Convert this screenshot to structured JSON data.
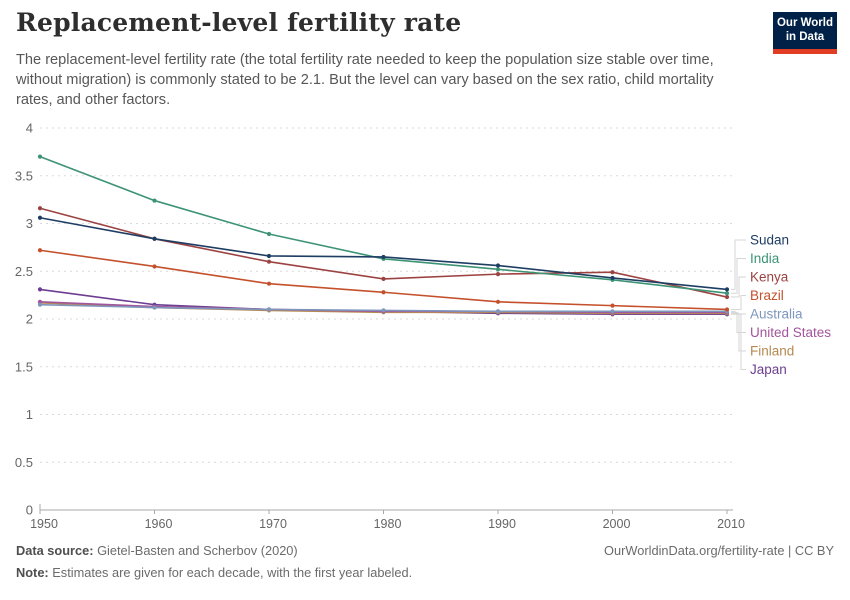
{
  "header": {
    "title": "Replacement-level fertility rate",
    "subtitle": "The replacement-level fertility rate (the total fertility rate needed to keep the population size stable over time, without migration) is commonly stated to be 2.1. But the level can vary based on the sex ratio, child mortality rates, and other factors.",
    "logo": {
      "line1": "Our World",
      "line2": "in Data",
      "bg_color": "#002147",
      "accent_color": "#E13D24"
    }
  },
  "chart_data": {
    "type": "line",
    "x": [
      1950,
      1960,
      1970,
      1980,
      1990,
      2000,
      2010
    ],
    "series": [
      {
        "name": "Sudan",
        "color": "#1D3D63",
        "values": [
          3.06,
          2.84,
          2.66,
          2.65,
          2.56,
          2.43,
          2.31
        ]
      },
      {
        "name": "India",
        "color": "#3D9475",
        "values": [
          3.7,
          3.24,
          2.89,
          2.63,
          2.52,
          2.41,
          2.27
        ]
      },
      {
        "name": "Kenya",
        "color": "#9C4342",
        "values": [
          3.16,
          2.84,
          2.6,
          2.42,
          2.47,
          2.49,
          2.23
        ]
      },
      {
        "name": "Brazil",
        "color": "#C4512C",
        "values": [
          2.72,
          2.55,
          2.37,
          2.28,
          2.18,
          2.14,
          2.1
        ]
      },
      {
        "name": "Australia",
        "color": "#7E96BC",
        "values": [
          2.15,
          2.12,
          2.1,
          2.09,
          2.08,
          2.08,
          2.08
        ]
      },
      {
        "name": "United States",
        "color": "#A2559C",
        "values": [
          2.18,
          2.13,
          2.1,
          2.08,
          2.08,
          2.07,
          2.07
        ]
      },
      {
        "name": "Finland",
        "color": "#B68A52",
        "values": [
          2.17,
          2.12,
          2.09,
          2.07,
          2.07,
          2.06,
          2.06
        ]
      },
      {
        "name": "Japan",
        "color": "#6D3E91",
        "values": [
          2.31,
          2.15,
          2.1,
          2.08,
          2.06,
          2.05,
          2.05
        ]
      }
    ],
    "title": "Replacement-level fertility rate",
    "xlabel": "",
    "ylabel": "",
    "ylim": [
      0,
      4
    ],
    "yticks": [
      0,
      0.5,
      1,
      1.5,
      2,
      2.5,
      3,
      3.5,
      4
    ],
    "ytick_labels": [
      "0",
      "0.5",
      "1",
      "1.5",
      "2",
      "2.5",
      "3",
      "3.5",
      "4"
    ],
    "xticks": [
      1950,
      1960,
      1970,
      1980,
      1990,
      2000,
      2010
    ],
    "grid": true,
    "grid_style": "dashed-horizontal",
    "legend_position": "right",
    "axis_text_color": "#666666",
    "grid_color": "#dadada",
    "axis_line_color": "#a8a8a8",
    "leader_line_color": "#d6d6d6"
  },
  "footer": {
    "data_source_label": "Data source:",
    "data_source_text": " Gietel-Basten and Scherbov (2020)",
    "note_label": "Note:",
    "note_text": " Estimates are given for each decade, with the first year labeled.",
    "credit": "OurWorldinData.org/fertility-rate | CC BY"
  }
}
